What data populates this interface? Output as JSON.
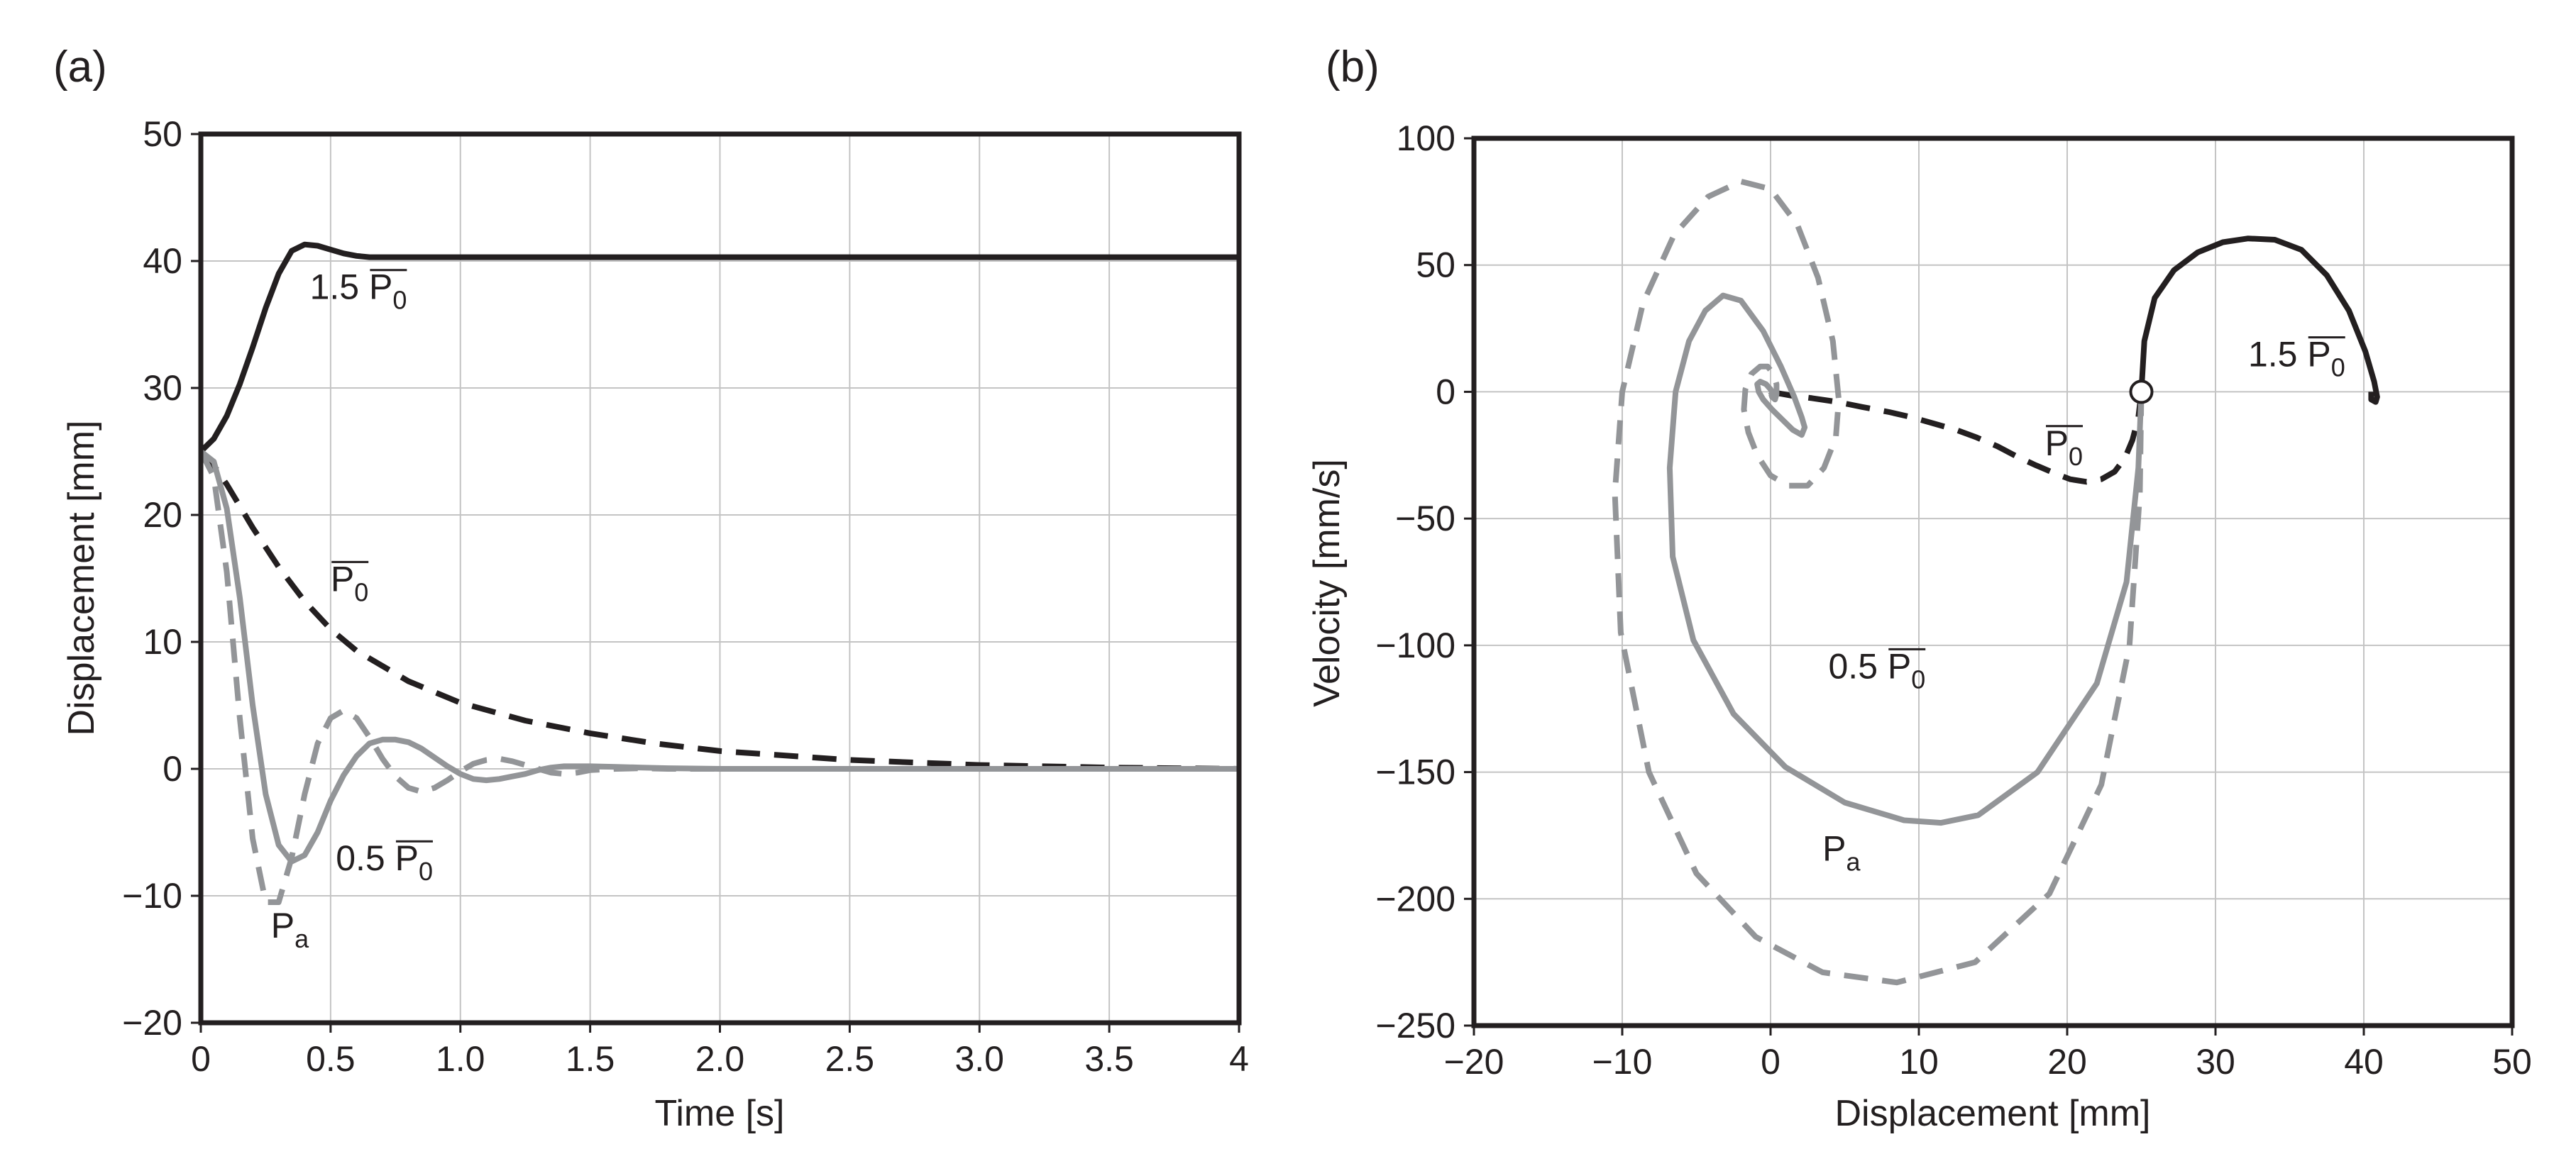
{
  "colors": {
    "black": "#231f20",
    "gray": "#939598",
    "grid": "#c4c4c4"
  },
  "chart_data": [
    {
      "type": "line",
      "panel_label": "(a)",
      "xlabel": "Time [s]",
      "ylabel": "Displacement [mm]",
      "xlim": [
        0,
        4
      ],
      "ylim": [
        -20,
        50
      ],
      "grid": true,
      "x_ticks": [
        0,
        0.5,
        1,
        1.5,
        2,
        2.5,
        3,
        3.5,
        4
      ],
      "x_tick_labels": [
        "0",
        "0.5",
        "1.0",
        "1.5",
        "2.0",
        "2.5",
        "3.0",
        "3.5",
        "4"
      ],
      "y_ticks": [
        -20,
        -10,
        0,
        10,
        20,
        30,
        40,
        50
      ],
      "y_tick_labels": [
        "−20",
        "−10",
        "0",
        "10",
        "20",
        "30",
        "40",
        "50"
      ],
      "annotations": [
        {
          "id": "a-15p0",
          "base": "1.5 P",
          "sub": "0",
          "overline": true,
          "x": 0.42,
          "y": 37
        },
        {
          "id": "a-p0",
          "base": "P",
          "sub": "0",
          "overline": true,
          "x": 0.5,
          "y": 14
        },
        {
          "id": "a-05p0",
          "base": "0.5 P",
          "sub": "0",
          "overline": true,
          "x": 0.52,
          "y": -8
        },
        {
          "id": "a-pa",
          "base": "P",
          "sub": "a",
          "overline": false,
          "x": 0.27,
          "y": -13.3
        }
      ],
      "series": [
        {
          "name": "1.5 P0",
          "color": "#231f20",
          "dash": "solid",
          "x": [
            0,
            0.05,
            0.1,
            0.15,
            0.2,
            0.25,
            0.3,
            0.35,
            0.4,
            0.45,
            0.5,
            0.55,
            0.6,
            0.65,
            0.7,
            0.75,
            0.8,
            1.0,
            1.5,
            2.0,
            2.5,
            3.0,
            3.5,
            4.0
          ],
          "y": [
            25,
            26,
            27.8,
            30.3,
            33.2,
            36.3,
            39.0,
            40.8,
            41.3,
            41.2,
            40.9,
            40.6,
            40.4,
            40.3,
            40.3,
            40.3,
            40.3,
            40.3,
            40.3,
            40.3,
            40.3,
            40.3,
            40.3,
            40.3
          ]
        },
        {
          "name": "P0",
          "color": "#231f20",
          "dash": "dashed",
          "x": [
            0,
            0.05,
            0.1,
            0.2,
            0.3,
            0.4,
            0.5,
            0.6,
            0.8,
            1.0,
            1.25,
            1.5,
            1.75,
            2.0,
            2.5,
            3.0,
            3.5,
            4.0
          ],
          "y": [
            25,
            23.9,
            22.4,
            19.0,
            15.9,
            13.2,
            11.0,
            9.3,
            6.9,
            5.2,
            3.8,
            2.8,
            2.0,
            1.4,
            0.7,
            0.3,
            0.1,
            0.0
          ]
        },
        {
          "name": "0.5 P0",
          "color": "#939598",
          "dash": "solid",
          "x": [
            0,
            0.05,
            0.1,
            0.15,
            0.2,
            0.25,
            0.3,
            0.35,
            0.4,
            0.45,
            0.5,
            0.55,
            0.6,
            0.65,
            0.7,
            0.75,
            0.8,
            0.85,
            0.9,
            0.95,
            1.0,
            1.05,
            1.1,
            1.15,
            1.2,
            1.25,
            1.3,
            1.35,
            1.4,
            1.5,
            1.6,
            1.7,
            1.8,
            2.0,
            2.5,
            3.0,
            4.0
          ],
          "y": [
            25,
            24.2,
            20.5,
            13.5,
            5.0,
            -2.0,
            -6.0,
            -7.3,
            -6.8,
            -5.0,
            -2.5,
            -0.5,
            1.0,
            2.0,
            2.3,
            2.3,
            2.1,
            1.6,
            0.9,
            0.2,
            -0.4,
            -0.8,
            -0.9,
            -0.8,
            -0.6,
            -0.4,
            -0.1,
            0.1,
            0.2,
            0.2,
            0.15,
            0.1,
            0.05,
            0.0,
            0.0,
            0.0,
            0.0
          ]
        },
        {
          "name": "Pa",
          "color": "#939598",
          "dash": "dashed",
          "x": [
            0,
            0.05,
            0.1,
            0.15,
            0.2,
            0.25,
            0.3,
            0.35,
            0.4,
            0.45,
            0.5,
            0.55,
            0.6,
            0.65,
            0.7,
            0.75,
            0.8,
            0.85,
            0.9,
            0.95,
            1.0,
            1.05,
            1.1,
            1.15,
            1.2,
            1.25,
            1.3,
            1.35,
            1.4,
            1.45,
            1.5,
            1.6,
            1.7,
            1.8,
            2.0,
            2.5,
            3.0,
            4.0
          ],
          "y": [
            25,
            23.0,
            15.5,
            4.0,
            -5.5,
            -10.5,
            -10.5,
            -7.0,
            -2.0,
            2.0,
            4.0,
            4.6,
            4.0,
            2.5,
            0.8,
            -0.6,
            -1.5,
            -1.8,
            -1.5,
            -0.9,
            -0.2,
            0.4,
            0.7,
            0.8,
            0.6,
            0.3,
            0.0,
            -0.3,
            -0.4,
            -0.3,
            -0.1,
            0.0,
            0.05,
            0.0,
            0.0,
            0.0,
            0.0,
            0.0
          ]
        }
      ]
    },
    {
      "type": "line",
      "panel_label": "(b)",
      "xlabel": "Displacement [mm]",
      "ylabel": "Velocity [mm/s]",
      "xlim": [
        -20,
        50
      ],
      "ylim": [
        -250,
        100
      ],
      "grid": true,
      "x_ticks": [
        -20,
        -10,
        0,
        10,
        20,
        30,
        40,
        50
      ],
      "x_tick_labels": [
        "−20",
        "−10",
        "0",
        "10",
        "20",
        "30",
        "40",
        "50"
      ],
      "y_ticks": [
        -250,
        -200,
        -150,
        -100,
        -50,
        0,
        50,
        100
      ],
      "y_tick_labels": [
        "−250",
        "−200",
        "−150",
        "−100",
        "−50",
        "0",
        "50",
        "100"
      ],
      "start_point": {
        "x": 25,
        "y": 0
      },
      "annotations": [
        {
          "id": "b-15p0",
          "base": "1.5 P",
          "sub": "0",
          "overline": true,
          "x": 32.2,
          "y": 10
        },
        {
          "id": "b-p0",
          "base": "P",
          "sub": "0",
          "overline": true,
          "x": 18.5,
          "y": -25
        },
        {
          "id": "b-05p0",
          "base": "0.5 P",
          "sub": "0",
          "overline": true,
          "x": 3.9,
          "y": -113
        },
        {
          "id": "b-pa",
          "base": "P",
          "sub": "a",
          "overline": false,
          "x": 3.5,
          "y": -185
        }
      ],
      "series": [
        {
          "name": "1.5 P0",
          "color": "#231f20",
          "dash": "solid",
          "x": [
            25,
            25.2,
            25.9,
            27.2,
            28.8,
            30.5,
            32.2,
            34.0,
            35.8,
            37.5,
            39.0,
            40.1,
            40.7,
            40.9,
            40.8,
            40.5,
            40.5
          ],
          "y": [
            0,
            20,
            37,
            48,
            55,
            59,
            60.5,
            60,
            56,
            46,
            32,
            16,
            4,
            -2,
            -4,
            -3,
            0
          ]
        },
        {
          "name": "P0",
          "color": "#231f20",
          "dash": "dashed",
          "x": [
            0,
            1.4,
            2.8,
            4.5,
            6.2,
            8.0,
            9.5,
            11.0,
            12.5,
            13.9,
            15.3,
            16.6,
            17.9,
            19.1,
            20.2,
            21.3,
            22.3,
            23.2,
            23.9,
            24.4,
            24.8,
            25.0
          ],
          "y": [
            0,
            -1.5,
            -2.5,
            -4,
            -6,
            -8,
            -10,
            -12.5,
            -15,
            -18,
            -21.5,
            -25.5,
            -29,
            -32,
            -34.5,
            -35.5,
            -34.5,
            -31.5,
            -26,
            -19,
            -10,
            0
          ]
        },
        {
          "name": "0.5 P0",
          "color": "#939598",
          "dash": "solid",
          "x": [
            25.0,
            24.8,
            24.0,
            22.0,
            18.0,
            14.0,
            11.5,
            9.0,
            5.0,
            1.0,
            -2.5,
            -5.2,
            -6.6,
            -6.8,
            -6.4,
            -5.5,
            -4.4,
            -3.2,
            -2.0,
            -0.5,
            0.7,
            1.6,
            2.1,
            2.3,
            2.1,
            1.5,
            0.8,
            0.1,
            -0.5,
            -0.8,
            -0.9,
            -0.7,
            -0.3,
            0.0,
            0.2,
            0.2,
            0.1,
            0.0
          ],
          "y": [
            0,
            -30,
            -75,
            -115,
            -150,
            -167,
            -170,
            -169,
            -162,
            -148,
            -127,
            -98,
            -65,
            -30,
            0,
            20,
            32,
            38,
            36,
            24,
            10,
            -2,
            -10,
            -14,
            -17,
            -15,
            -11,
            -7,
            -3,
            0,
            3,
            4,
            3,
            1,
            -1,
            -2,
            -1,
            0
          ]
        },
        {
          "name": "Pa",
          "color": "#939598",
          "dash": "dashed",
          "x": [
            25.0,
            24.9,
            24.2,
            22.3,
            18.8,
            13.8,
            8.5,
            3.5,
            -1.0,
            -5.0,
            -8.2,
            -10.1,
            -10.5,
            -10.0,
            -8.6,
            -6.5,
            -4.2,
            -2.0,
            0.0,
            1.8,
            3.2,
            4.2,
            4.6,
            4.4,
            3.6,
            2.5,
            1.2,
            0.0,
            -0.9,
            -1.5,
            -1.8,
            -1.7,
            -1.3,
            -0.7,
            -0.2,
            0.2,
            0.4,
            0.4,
            0.3,
            0.1,
            0.0
          ],
          "y": [
            0,
            -40,
            -100,
            -155,
            -198,
            -225,
            -233,
            -229,
            -215,
            -190,
            -150,
            -95,
            -40,
            0,
            35,
            62,
            77,
            83,
            80,
            66,
            45,
            20,
            -3,
            -18,
            -30,
            -37,
            -37,
            -33,
            -25,
            -16,
            -7,
            1,
            7,
            10,
            10,
            7,
            3,
            -1,
            -3,
            -2,
            0
          ]
        }
      ]
    }
  ]
}
